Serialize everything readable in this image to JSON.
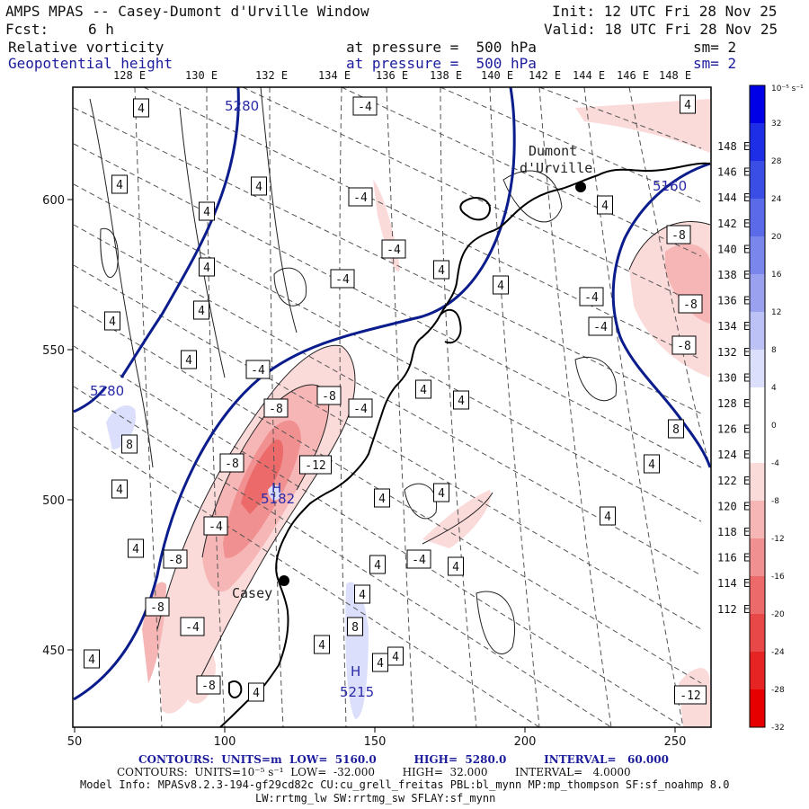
{
  "header": {
    "title": "AMPS MPAS -- Casey-Dumont d'Urville Window",
    "fcst_label": "Fcst:",
    "fcst_value": "6 h",
    "init": "Init: 12 UTC Fri 28 Nov 25",
    "valid": "Valid: 18 UTC Fri 28 Nov 25",
    "field1_name": "Relative vorticity",
    "field1_level": "at pressure =  500 hPa",
    "field1_sm": "sm= 2",
    "field2_name": "Geopotential height",
    "field2_level": "at pressure =  500 hPa",
    "field2_sm": "sm= 2"
  },
  "top_longitude_labels": [
    "128 E",
    "130 E",
    "132 E",
    "134 E",
    "136 E",
    "138 E",
    "140 E",
    "142 E",
    "144 E",
    "146 E",
    "148 E"
  ],
  "right_latitude_labels": [
    "148 E",
    "146 E",
    "144 E",
    "142 E",
    "140 E",
    "138 E",
    "136 E",
    "134 E",
    "132 E",
    "130 E",
    "128 E",
    "126 E",
    "124 E",
    "122 E",
    "120 E",
    "118 E",
    "116 E",
    "114 E",
    "112 E"
  ],
  "x_axis_labels": [
    "50",
    "100",
    "150",
    "200",
    "250"
  ],
  "y_axis_labels": [
    "600",
    "550",
    "500",
    "450"
  ],
  "places": [
    {
      "name_line1": "Dumont",
      "name_line2": "d'Urville"
    },
    {
      "name_line1": "Casey",
      "name_line2": ""
    }
  ],
  "height_labels": [
    "5280",
    "5280",
    "5160",
    "5182",
    "5215"
  ],
  "height_marks": [
    "H",
    "H"
  ],
  "vort_labels_positive": [
    "4",
    "4",
    "4",
    "4",
    "4",
    "4",
    "4",
    "4",
    "4",
    "4",
    "4",
    "4",
    "4",
    "4",
    "4",
    "4",
    "4",
    "4",
    "4",
    "4",
    "4",
    "4",
    "4",
    "4",
    "4",
    "4",
    "4",
    "4",
    "8",
    "8",
    "8"
  ],
  "vort_labels_negative": [
    "-4",
    "-4",
    "-4",
    "-4",
    "-4",
    "-4",
    "-4",
    "-4",
    "-4",
    "-8",
    "-8",
    "-8",
    "-8",
    "-8",
    "-8",
    "-8",
    "-8",
    "-12",
    "-12",
    "-4",
    "-4",
    "-8"
  ],
  "colorbar": {
    "unit_label": "10⁻⁵ s⁻¹",
    "tick_labels": [
      "32",
      "28",
      "24",
      "20",
      "16",
      "12",
      "8",
      "4",
      "0",
      "-4",
      "-8",
      "-12",
      "-16",
      "-20",
      "-24",
      "-28",
      "-32"
    ],
    "colors": [
      "#0000e6",
      "#1e2ee6",
      "#3a4ee6",
      "#5a6ae8",
      "#7a86ec",
      "#9aa2f0",
      "#bcc2f6",
      "#dcdffb",
      "#ffffff",
      "#ffffff",
      "#fbdada",
      "#f6b6b6",
      "#f09090",
      "#ec6a6a",
      "#e84848",
      "#e62424",
      "#e60000"
    ]
  },
  "footer": {
    "line1": "CONTOURS:  UNITS=m  LOW=  5160.0          HIGH=  5280.0          INTERVAL=   60.000",
    "line2": "CONTOURS:  UNITS=10⁻⁵ s⁻¹  LOW=  -32.000        HIGH=  32.000        INTERVAL=   4.0000",
    "line3": "Model Info: MPASv8.2.3-194-gf29cd82c CU:cu_grell_freitas PBL:bl_mynn MP:mp_thompson SF:sf_noahmp 8.0",
    "line4": "LW:rrtmg_lw SW:rrtmg_sw SFLAY:sf_mynn"
  },
  "colors": {
    "height_contour": "#0b1c8c",
    "coast": "#000000",
    "vort_contour": "#222222",
    "grid": "#555555"
  }
}
